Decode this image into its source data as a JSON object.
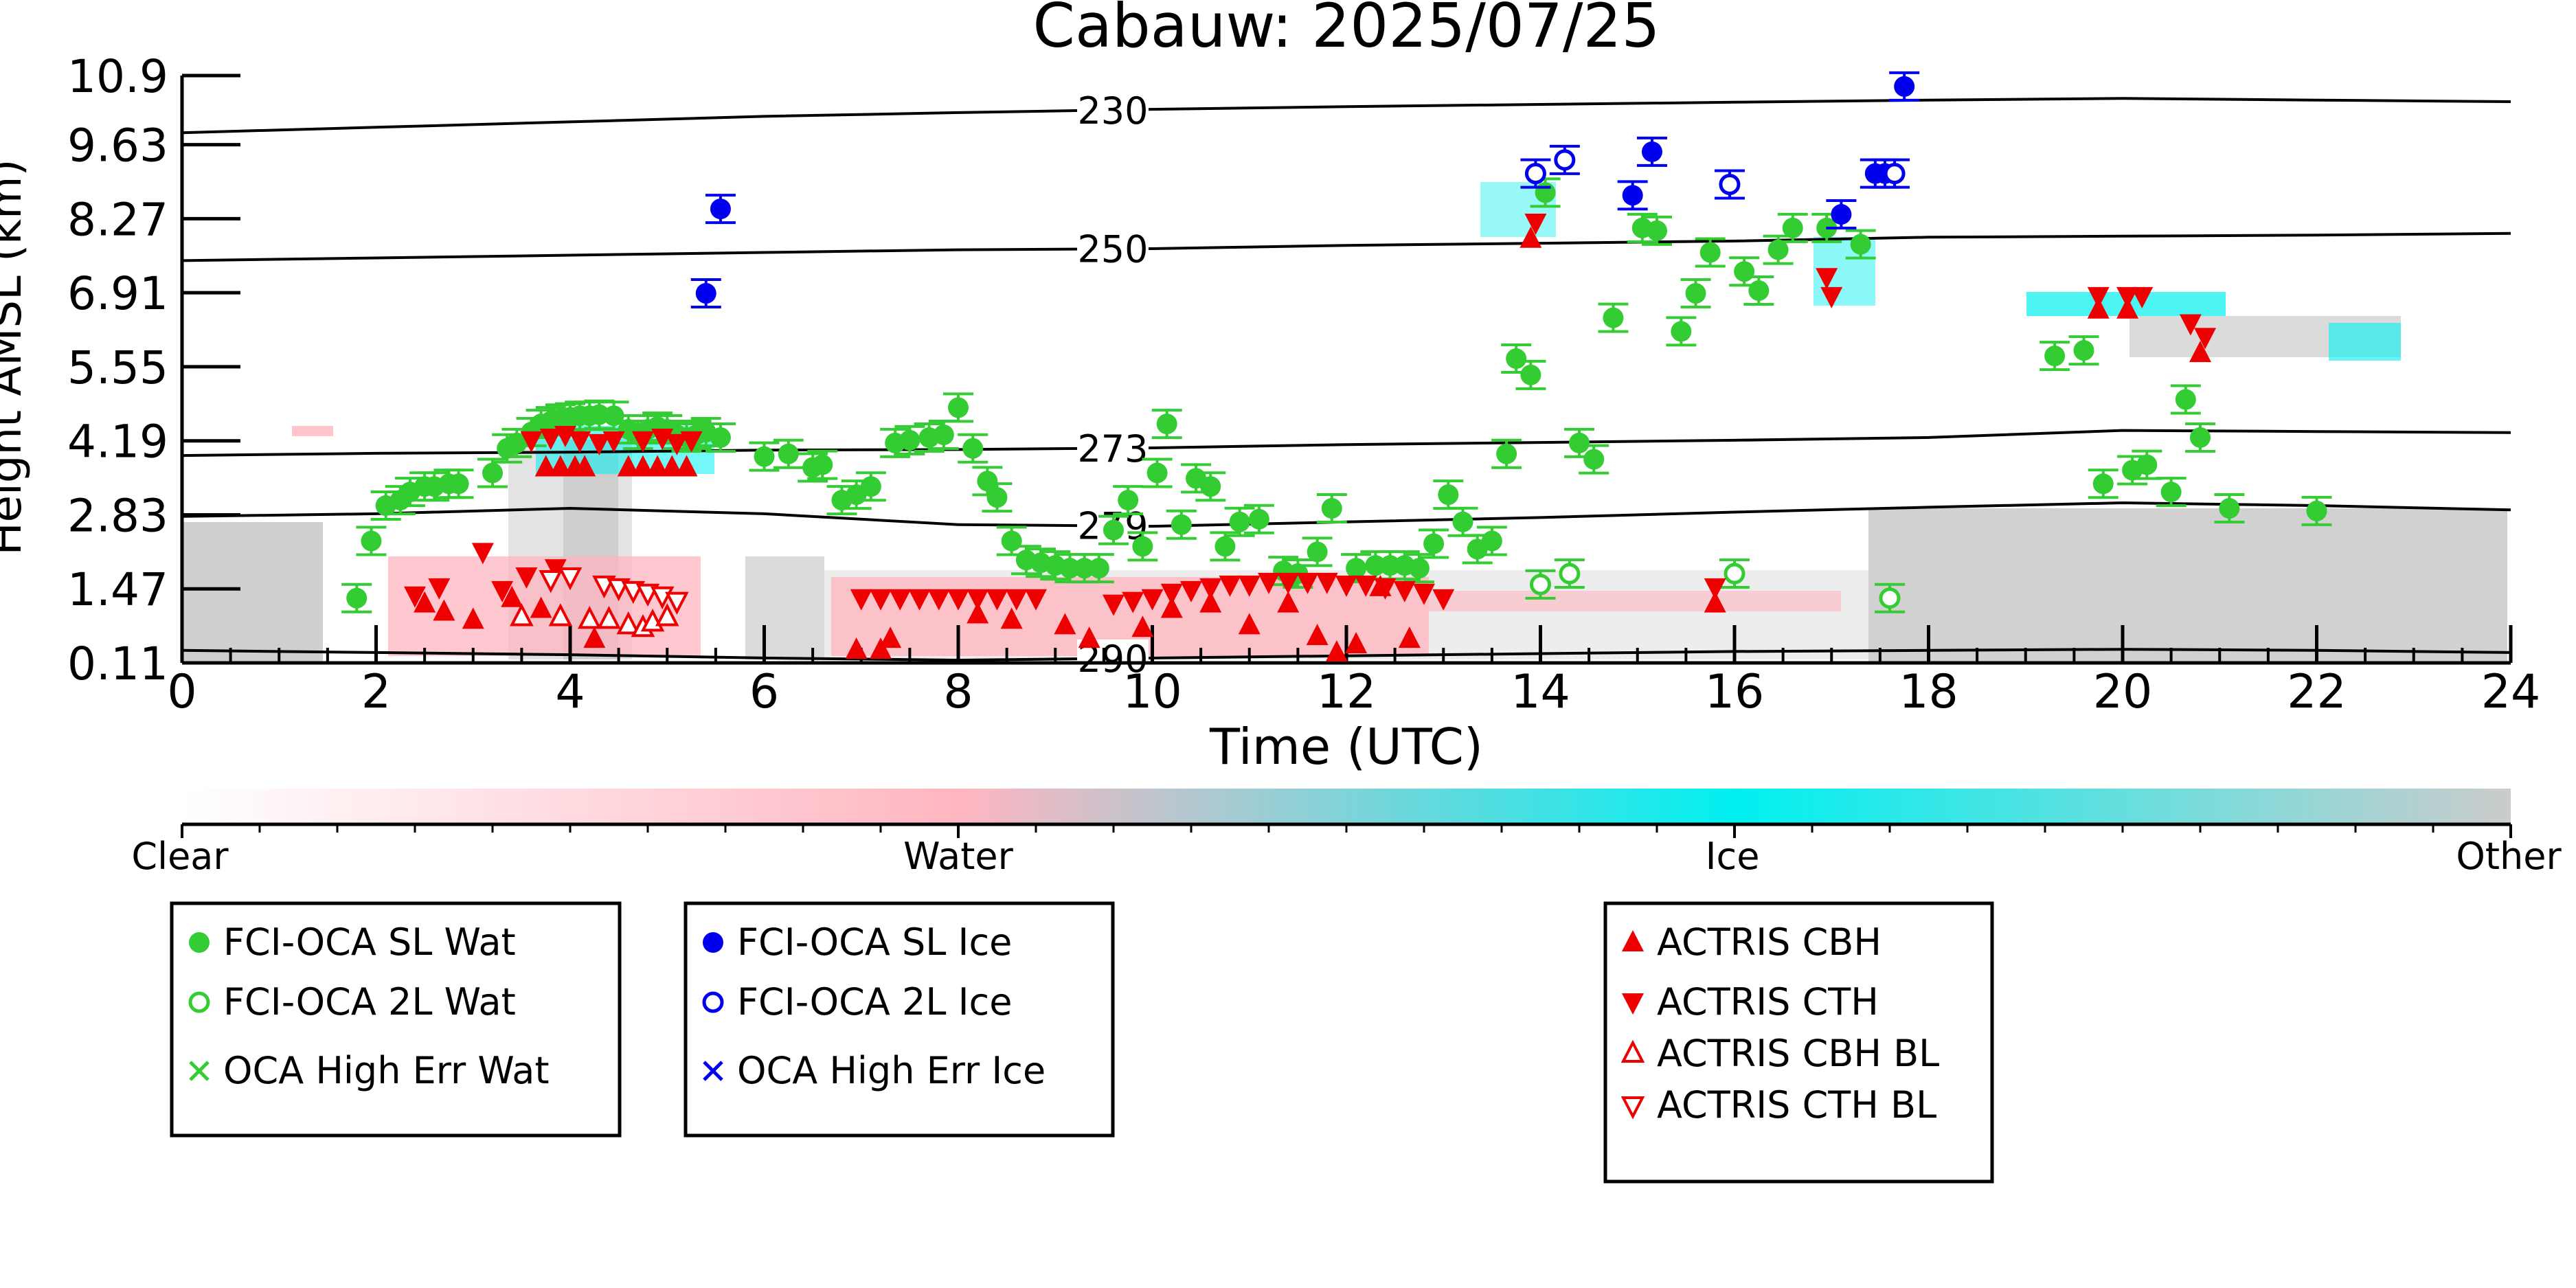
{
  "chart_data": {
    "type": "scatter",
    "title": "Cabauw: 2025/07/25",
    "xlabel": "Time (UTC)",
    "ylabel": "Height AMSL (km)",
    "xlim": [
      0,
      24
    ],
    "ylim": [
      0.11,
      10.9
    ],
    "x_ticks": [
      "0",
      "2",
      "4",
      "6",
      "8",
      "10",
      "12",
      "14",
      "16",
      "18",
      "20",
      "22",
      "24"
    ],
    "y_ticks": [
      "0.11",
      "1.47",
      "2.83",
      "4.19",
      "5.55",
      "6.91",
      "8.27",
      "9.63",
      "10.9"
    ],
    "colors": {
      "sl_wat": "#33cc33",
      "sl_ice": "#0000ee",
      "actris": "#ee0000",
      "class_water": "#ffb6c1",
      "class_ice": "#00f0f0",
      "class_other": "#cccccc"
    },
    "colorbar": {
      "labels": [
        "Clear",
        "Water",
        "Ice",
        "Other"
      ],
      "stops": [
        "#ffffff",
        "#ffb6c1",
        "#00f0f0",
        "#cccccc"
      ]
    },
    "contours": [
      {
        "label": "230",
        "points": [
          [
            0,
            9.85
          ],
          [
            2,
            9.95
          ],
          [
            4,
            10.05
          ],
          [
            6,
            10.15
          ],
          [
            8,
            10.22
          ],
          [
            10,
            10.28
          ],
          [
            12,
            10.33
          ],
          [
            14,
            10.37
          ],
          [
            16,
            10.41
          ],
          [
            18,
            10.45
          ],
          [
            20,
            10.48
          ],
          [
            22,
            10.45
          ],
          [
            24,
            10.42
          ]
        ]
      },
      {
        "label": "250",
        "points": [
          [
            0,
            7.5
          ],
          [
            2,
            7.55
          ],
          [
            4,
            7.6
          ],
          [
            6,
            7.65
          ],
          [
            8,
            7.7
          ],
          [
            10,
            7.72
          ],
          [
            11,
            7.75
          ],
          [
            12,
            7.78
          ],
          [
            14,
            7.82
          ],
          [
            16,
            7.86
          ],
          [
            18,
            7.93
          ],
          [
            20,
            7.95
          ],
          [
            22,
            7.97
          ],
          [
            24,
            8.0
          ]
        ]
      },
      {
        "label": "273",
        "points": [
          [
            0,
            3.92
          ],
          [
            2,
            3.96
          ],
          [
            4,
            3.98
          ],
          [
            6,
            4.02
          ],
          [
            8,
            4.03
          ],
          [
            10,
            4.06
          ],
          [
            12,
            4.12
          ],
          [
            14,
            4.16
          ],
          [
            16,
            4.2
          ],
          [
            18,
            4.25
          ],
          [
            20,
            4.38
          ],
          [
            22,
            4.36
          ],
          [
            24,
            4.34
          ]
        ]
      },
      {
        "label": "279",
        "points": [
          [
            0,
            2.8
          ],
          [
            2,
            2.85
          ],
          [
            4,
            2.95
          ],
          [
            6,
            2.85
          ],
          [
            8,
            2.65
          ],
          [
            10,
            2.62
          ],
          [
            12,
            2.7
          ],
          [
            14,
            2.78
          ],
          [
            16,
            2.88
          ],
          [
            18,
            2.97
          ],
          [
            20,
            3.05
          ],
          [
            22,
            3.0
          ],
          [
            24,
            2.92
          ]
        ]
      },
      {
        "label": "290",
        "points": [
          [
            0,
            0.34
          ],
          [
            2,
            0.3
          ],
          [
            4,
            0.26
          ],
          [
            6,
            0.2
          ],
          [
            8,
            0.16
          ],
          [
            10,
            0.2
          ],
          [
            12,
            0.24
          ],
          [
            14,
            0.28
          ],
          [
            16,
            0.32
          ],
          [
            18,
            0.34
          ],
          [
            20,
            0.36
          ],
          [
            22,
            0.34
          ],
          [
            24,
            0.3
          ]
        ]
      }
    ],
    "series": [
      {
        "name": "FCI-OCA SL Wat",
        "marker": "filled-circle",
        "points": [
          [
            1.8,
            1.3
          ],
          [
            1.95,
            2.35
          ],
          [
            2.1,
            3.0
          ],
          [
            2.25,
            3.1
          ],
          [
            2.35,
            3.25
          ],
          [
            2.5,
            3.35
          ],
          [
            2.6,
            3.35
          ],
          [
            2.75,
            3.4
          ],
          [
            2.85,
            3.4
          ],
          [
            3.2,
            3.6
          ],
          [
            3.35,
            4.05
          ],
          [
            3.45,
            4.15
          ],
          [
            3.6,
            4.35
          ],
          [
            3.7,
            4.5
          ],
          [
            3.8,
            4.55
          ],
          [
            3.9,
            4.6
          ],
          [
            4.0,
            4.62
          ],
          [
            4.1,
            4.65
          ],
          [
            4.2,
            4.65
          ],
          [
            4.3,
            4.67
          ],
          [
            4.45,
            4.65
          ],
          [
            4.6,
            4.4
          ],
          [
            4.7,
            4.3
          ],
          [
            4.8,
            4.4
          ],
          [
            4.9,
            4.45
          ],
          [
            5.0,
            4.4
          ],
          [
            5.1,
            4.3
          ],
          [
            5.2,
            4.25
          ],
          [
            5.3,
            4.3
          ],
          [
            5.4,
            4.35
          ],
          [
            5.55,
            4.25
          ],
          [
            6.0,
            3.9
          ],
          [
            6.25,
            3.95
          ],
          [
            6.5,
            3.7
          ],
          [
            6.6,
            3.75
          ],
          [
            6.8,
            3.1
          ],
          [
            6.95,
            3.2
          ],
          [
            7.1,
            3.35
          ],
          [
            7.35,
            4.15
          ],
          [
            7.5,
            4.2
          ],
          [
            7.7,
            4.25
          ],
          [
            7.85,
            4.3
          ],
          [
            8.0,
            4.8
          ],
          [
            8.15,
            4.05
          ],
          [
            8.3,
            3.45
          ],
          [
            8.4,
            3.15
          ],
          [
            8.55,
            2.35
          ],
          [
            8.7,
            2.0
          ],
          [
            8.85,
            1.95
          ],
          [
            9.0,
            1.9
          ],
          [
            9.15,
            1.85
          ],
          [
            9.3,
            1.85
          ],
          [
            9.45,
            1.85
          ],
          [
            9.6,
            2.55
          ],
          [
            9.75,
            3.1
          ],
          [
            9.9,
            2.25
          ],
          [
            10.05,
            3.6
          ],
          [
            10.15,
            4.5
          ],
          [
            10.3,
            2.65
          ],
          [
            10.45,
            3.5
          ],
          [
            10.6,
            3.35
          ],
          [
            10.75,
            2.25
          ],
          [
            10.9,
            2.7
          ],
          [
            11.1,
            2.75
          ],
          [
            11.35,
            1.8
          ],
          [
            11.5,
            1.75
          ],
          [
            11.7,
            2.15
          ],
          [
            11.85,
            2.95
          ],
          [
            12.1,
            1.85
          ],
          [
            12.3,
            1.9
          ],
          [
            12.45,
            1.9
          ],
          [
            12.6,
            1.9
          ],
          [
            12.75,
            1.85
          ],
          [
            12.9,
            2.3
          ],
          [
            13.05,
            3.2
          ],
          [
            13.2,
            2.7
          ],
          [
            13.35,
            2.2
          ],
          [
            13.5,
            2.35
          ],
          [
            13.65,
            3.95
          ],
          [
            13.75,
            5.7
          ],
          [
            13.9,
            5.4
          ],
          [
            14.05,
            8.75
          ],
          [
            14.4,
            4.15
          ],
          [
            14.55,
            3.85
          ],
          [
            14.75,
            6.45
          ],
          [
            15.05,
            8.1
          ],
          [
            15.2,
            8.05
          ],
          [
            15.45,
            6.2
          ],
          [
            15.6,
            6.9
          ],
          [
            15.75,
            7.65
          ],
          [
            16.1,
            7.3
          ],
          [
            16.25,
            6.95
          ],
          [
            16.45,
            7.7
          ],
          [
            16.6,
            8.1
          ],
          [
            16.95,
            8.1
          ],
          [
            17.3,
            7.8
          ],
          [
            19.3,
            5.75
          ],
          [
            19.6,
            5.85
          ],
          [
            19.8,
            3.4
          ],
          [
            20.1,
            3.65
          ],
          [
            20.25,
            3.75
          ],
          [
            20.5,
            3.25
          ],
          [
            20.65,
            4.95
          ],
          [
            20.8,
            4.25
          ],
          [
            21.1,
            2.95
          ],
          [
            22.0,
            2.9
          ]
        ]
      },
      {
        "name": "FCI-OCA 2L Wat",
        "marker": "open-circle",
        "points": [
          [
            14.0,
            1.55
          ],
          [
            14.3,
            1.75
          ],
          [
            16.0,
            1.75
          ],
          [
            17.6,
            1.3
          ]
        ]
      },
      {
        "name": "OCA High Err Wat",
        "marker": "x",
        "points": []
      },
      {
        "name": "FCI-OCA SL Ice",
        "marker": "filled-circle",
        "points": [
          [
            5.4,
            6.9
          ],
          [
            5.55,
            8.45
          ],
          [
            14.95,
            8.7
          ],
          [
            15.15,
            9.5
          ],
          [
            17.1,
            8.35
          ],
          [
            17.45,
            9.1
          ],
          [
            17.55,
            9.1
          ],
          [
            17.75,
            10.7
          ]
        ]
      },
      {
        "name": "FCI-OCA 2L Ice",
        "marker": "open-circle",
        "points": [
          [
            13.95,
            9.1
          ],
          [
            14.25,
            9.35
          ],
          [
            15.95,
            8.9
          ],
          [
            17.65,
            9.1
          ]
        ]
      },
      {
        "name": "OCA High Err Ice",
        "marker": "x",
        "points": []
      },
      {
        "name": "ACTRIS CBH",
        "marker": "triangle-up",
        "points": [
          [
            2.5,
            1.2
          ],
          [
            2.7,
            1.05
          ],
          [
            3.0,
            0.9
          ],
          [
            3.4,
            1.3
          ],
          [
            3.7,
            1.1
          ],
          [
            3.75,
            3.7
          ],
          [
            3.9,
            3.7
          ],
          [
            4.05,
            3.7
          ],
          [
            4.15,
            3.7
          ],
          [
            4.25,
            0.55
          ],
          [
            4.6,
            3.7
          ],
          [
            4.75,
            3.7
          ],
          [
            4.9,
            3.7
          ],
          [
            5.05,
            3.7
          ],
          [
            5.2,
            3.7
          ],
          [
            6.95,
            0.35
          ],
          [
            7.2,
            0.35
          ],
          [
            7.3,
            0.55
          ],
          [
            8.2,
            1.0
          ],
          [
            8.55,
            0.9
          ],
          [
            9.1,
            0.8
          ],
          [
            9.35,
            0.55
          ],
          [
            9.9,
            0.75
          ],
          [
            10.2,
            1.1
          ],
          [
            10.6,
            1.2
          ],
          [
            11.0,
            0.8
          ],
          [
            11.4,
            1.2
          ],
          [
            11.7,
            0.6
          ],
          [
            11.9,
            0.3
          ],
          [
            12.1,
            0.45
          ],
          [
            12.35,
            1.5
          ],
          [
            12.65,
            0.55
          ],
          [
            13.9,
            7.9
          ],
          [
            15.8,
            1.2
          ],
          [
            19.75,
            6.6
          ],
          [
            20.05,
            6.6
          ],
          [
            20.8,
            5.8
          ]
        ]
      },
      {
        "name": "ACTRIS CTH",
        "marker": "triangle-down",
        "points": [
          [
            2.4,
            1.35
          ],
          [
            2.65,
            1.5
          ],
          [
            3.1,
            2.15
          ],
          [
            3.3,
            1.45
          ],
          [
            3.55,
            1.7
          ],
          [
            3.85,
            1.85
          ],
          [
            3.6,
            4.2
          ],
          [
            3.8,
            4.25
          ],
          [
            3.95,
            4.3
          ],
          [
            4.1,
            4.2
          ],
          [
            4.3,
            4.15
          ],
          [
            4.45,
            4.2
          ],
          [
            4.75,
            4.2
          ],
          [
            4.95,
            4.25
          ],
          [
            5.1,
            4.15
          ],
          [
            5.25,
            4.2
          ],
          [
            7.0,
            1.3
          ],
          [
            7.2,
            1.3
          ],
          [
            7.4,
            1.3
          ],
          [
            7.6,
            1.3
          ],
          [
            7.8,
            1.3
          ],
          [
            8.0,
            1.3
          ],
          [
            8.2,
            1.3
          ],
          [
            8.4,
            1.3
          ],
          [
            8.6,
            1.3
          ],
          [
            8.8,
            1.3
          ],
          [
            9.6,
            1.2
          ],
          [
            9.8,
            1.25
          ],
          [
            10.0,
            1.3
          ],
          [
            10.2,
            1.4
          ],
          [
            10.4,
            1.45
          ],
          [
            10.6,
            1.5
          ],
          [
            10.8,
            1.55
          ],
          [
            11.0,
            1.55
          ],
          [
            11.2,
            1.6
          ],
          [
            11.4,
            1.6
          ],
          [
            11.6,
            1.6
          ],
          [
            11.8,
            1.6
          ],
          [
            12.0,
            1.55
          ],
          [
            12.2,
            1.55
          ],
          [
            12.4,
            1.5
          ],
          [
            12.6,
            1.45
          ],
          [
            12.8,
            1.4
          ],
          [
            13.0,
            1.3
          ],
          [
            13.95,
            8.2
          ],
          [
            15.8,
            1.5
          ],
          [
            16.95,
            7.2
          ],
          [
            17.0,
            6.85
          ],
          [
            19.75,
            6.85
          ],
          [
            20.05,
            6.85
          ],
          [
            20.2,
            6.85
          ],
          [
            20.7,
            6.35
          ],
          [
            20.85,
            6.1
          ]
        ]
      },
      {
        "name": "ACTRIS CBH BL",
        "marker": "open-triangle-up",
        "points": [
          [
            3.5,
            0.95
          ],
          [
            3.9,
            0.95
          ],
          [
            4.2,
            0.9
          ],
          [
            4.4,
            0.9
          ],
          [
            4.6,
            0.8
          ],
          [
            4.75,
            0.75
          ],
          [
            4.85,
            0.85
          ],
          [
            5.0,
            0.95
          ]
        ]
      },
      {
        "name": "ACTRIS CTH BL",
        "marker": "open-triangle-down",
        "points": [
          [
            3.8,
            1.65
          ],
          [
            4.0,
            1.7
          ],
          [
            4.35,
            1.55
          ],
          [
            4.5,
            1.5
          ],
          [
            4.65,
            1.45
          ],
          [
            4.8,
            1.4
          ],
          [
            4.95,
            1.35
          ],
          [
            5.1,
            1.25
          ]
        ]
      }
    ]
  }
}
